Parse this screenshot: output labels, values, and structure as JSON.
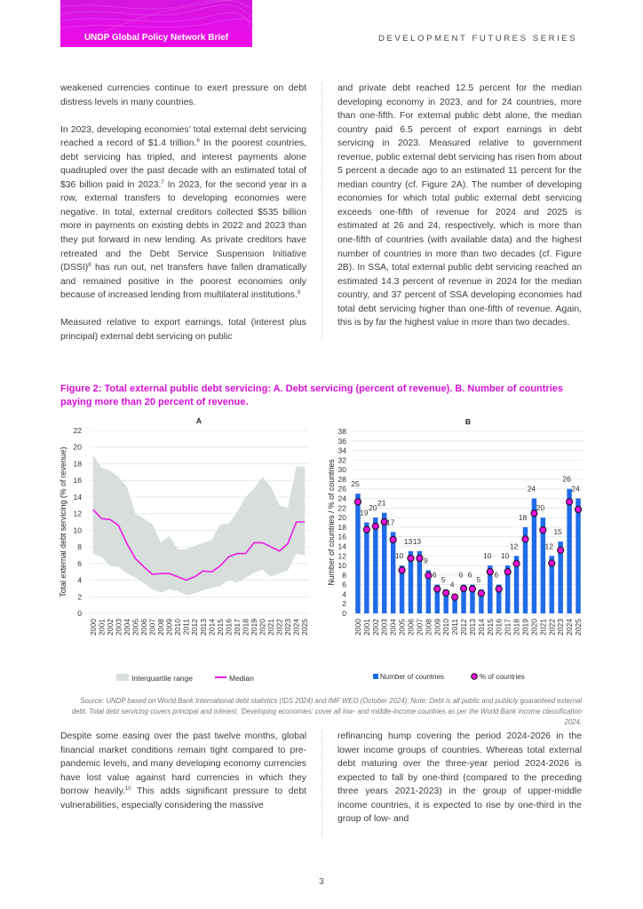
{
  "header": {
    "brief_title": "UNDP Global Policy Network Brief",
    "series_title": "DEVELOPMENT FUTURES SERIES",
    "brand_color": "#e40fe6"
  },
  "left_col": {
    "p1": "weakened currencies continue to exert pressure on debt distress levels in many countries.",
    "p2a": "In 2023, developing economies’ total external debt servicing reached a record of $1.4 trillion.",
    "p2_sup1": "6",
    "p2b": " In the poorest countries, debt servicing has tripled, and interest payments alone quadrupled over the past decade with an estimated total of $36 billion paid in 2023.",
    "p2_sup2": "7",
    "p2c": " In 2023, for the second year in a row, external transfers to developing economies were negative. In total, external creditors collected $535 billion more in payments on existing debts in 2022 and 2023 than they put forward in new lending. As private creditors have retreated and the Debt Service Suspension Initiative (DSSI)",
    "p2_sup3": "8",
    "p2d": " has run out, net transfers have fallen dramatically and remained positive in the poorest economies only because of increased lending from multilateral institutions.",
    "p2_sup4": "9",
    "p3": "Measured relative to export earnings, total (interest plus principal) external debt servicing on public"
  },
  "right_col": {
    "p1": "and private debt reached 12.5 percent for the median developing economy in 2023, and for 24 countries, more than one-fifth. For external public debt alone, the median country paid 6.5 percent of export earnings in debt servicing in 2023. Measured relative to government revenue, public external debt servicing has risen from about 5 percent a decade ago to an estimated 11 percent for the median country (cf. Figure 2A). The number of developing economies for which total public external debt servicing exceeds one-fifth of revenue for 2024 and 2025 is estimated at 26 and 24, respectively, which is more than one-fifth of countries (with available data) and the highest number of countries in more than two decades (cf. Figure 2B). In SSA, total external public debt servicing reached an estimated 14.3 percent of revenue in 2024 for the median country, and 37 percent of SSA developing economies had total debt servicing higher than one-fifth of revenue. Again, this is by far the highest value in more than two decades."
  },
  "figure": {
    "title": "Figure 2: Total external public debt servicing: A. Debt servicing (percent of revenue). B. Number of countries paying more than 20 percent of revenue.",
    "source": "Source: UNDP based on World Bank International debt statistics (IDS 2024) and IMF WEO (October 2024). Note: Debt is all public and publicly guaranteed external debt. Total debt servicing covers principal and interest. 'Developing economies' cover all low- and middle-income countries as per the World Bank income classification 2024."
  },
  "chart_data": [
    {
      "type": "area",
      "title": "A",
      "ylabel": "Total external debt servicing (% of revenue)",
      "xlabel": "",
      "ylim": [
        0,
        22
      ],
      "yticks": [
        0,
        2,
        4,
        6,
        8,
        10,
        12,
        14,
        16,
        18,
        20,
        22
      ],
      "grid": true,
      "legend": "bottom",
      "x": [
        "2000",
        "2001",
        "2002",
        "2003",
        "2004",
        "2005",
        "2006",
        "2007",
        "2008",
        "2009",
        "2010",
        "2011",
        "2012",
        "2013",
        "2014",
        "2015",
        "2016",
        "2017",
        "2018",
        "2019",
        "2020",
        "2021",
        "2022",
        "2023",
        "2024",
        "2025"
      ],
      "series": [
        {
          "name": "Interquartile range",
          "color": "#d7dedb",
          "upper": [
            19.1,
            17.5,
            17.2,
            16.4,
            15.2,
            12.0,
            11.4,
            10.7,
            8.5,
            9.3,
            7.7,
            7.7,
            8.1,
            8.5,
            8.8,
            10.7,
            10.8,
            12.2,
            14.0,
            15.0,
            16.4,
            15.2,
            13.0,
            12.7,
            17.7,
            17.6
          ],
          "lower": [
            7.2,
            6.8,
            5.7,
            5.6,
            4.8,
            4.3,
            3.6,
            2.9,
            2.5,
            2.9,
            2.7,
            2.2,
            2.4,
            2.8,
            3.1,
            3.3,
            4.0,
            3.7,
            4.3,
            4.9,
            5.3,
            4.4,
            4.8,
            5.2,
            7.2,
            7.0
          ]
        },
        {
          "name": "Median",
          "color": "#e81ee0",
          "values": [
            12.5,
            11.4,
            11.3,
            10.6,
            8.4,
            6.6,
            5.6,
            4.7,
            4.8,
            4.8,
            4.4,
            4.0,
            4.4,
            5.1,
            5.0,
            5.7,
            6.8,
            7.2,
            7.2,
            8.5,
            8.5,
            8.0,
            7.5,
            8.4,
            11.0,
            11.0
          ]
        }
      ]
    },
    {
      "type": "bar",
      "title": "B",
      "ylabel": "Number of countries / % of countries",
      "xlabel": "",
      "ylim": [
        0,
        38
      ],
      "yticks": [
        0,
        2,
        4,
        6,
        8,
        10,
        12,
        14,
        16,
        18,
        20,
        22,
        24,
        26,
        28,
        30,
        32,
        34,
        36,
        38
      ],
      "grid": true,
      "legend": "bottom",
      "x": [
        "2000",
        "2001",
        "2002",
        "2003",
        "2004",
        "2005",
        "2006",
        "2007",
        "2008",
        "2009",
        "2010",
        "2011",
        "2012",
        "2013",
        "2014",
        "2015",
        "2016",
        "2017",
        "2018",
        "2019",
        "2020",
        "2021",
        "2022",
        "2023",
        "2024",
        "2025"
      ],
      "series": [
        {
          "name": "Number of countries",
          "color": "#1f6be8",
          "values": [
            25,
            19,
            20,
            21,
            17,
            10,
            13,
            13,
            9,
            6,
            5,
            4,
            6,
            6,
            5,
            10,
            6,
            10,
            12,
            18,
            24,
            20,
            12,
            15,
            26,
            24
          ]
        },
        {
          "name": "% of countries",
          "color": "#e80fd8",
          "values": [
            23.3,
            17.5,
            18.2,
            19.1,
            15.4,
            9.0,
            11.5,
            11.5,
            7.9,
            5.1,
            4.3,
            3.4,
            5.2,
            5.1,
            4.2,
            8.7,
            5.1,
            8.7,
            10.4,
            15.5,
            20.9,
            17.4,
            10.5,
            13.2,
            23.3,
            21.7
          ]
        }
      ]
    }
  ],
  "bottom_left": {
    "p_a": "Despite some easing over the past twelve months, global financial market conditions remain tight compared to pre-pandemic levels, and many developing economy currencies have lost value against hard currencies in which they borrow heavily.",
    "sup": "10",
    "p_b": " This adds significant pressure to debt vulnerabilities, especially considering the massive"
  },
  "bottom_right": {
    "p1": "refinancing hump covering the period 2024-2026 in the lower income groups of countries. Whereas total external debt maturing over the three-year period 2024-2026 is expected to fall by one-third (compared to the preceding three years 2021-2023) in the group of upper-middle income countries, it is expected to rise by one-third in the group of low- and"
  },
  "page_number": "3"
}
